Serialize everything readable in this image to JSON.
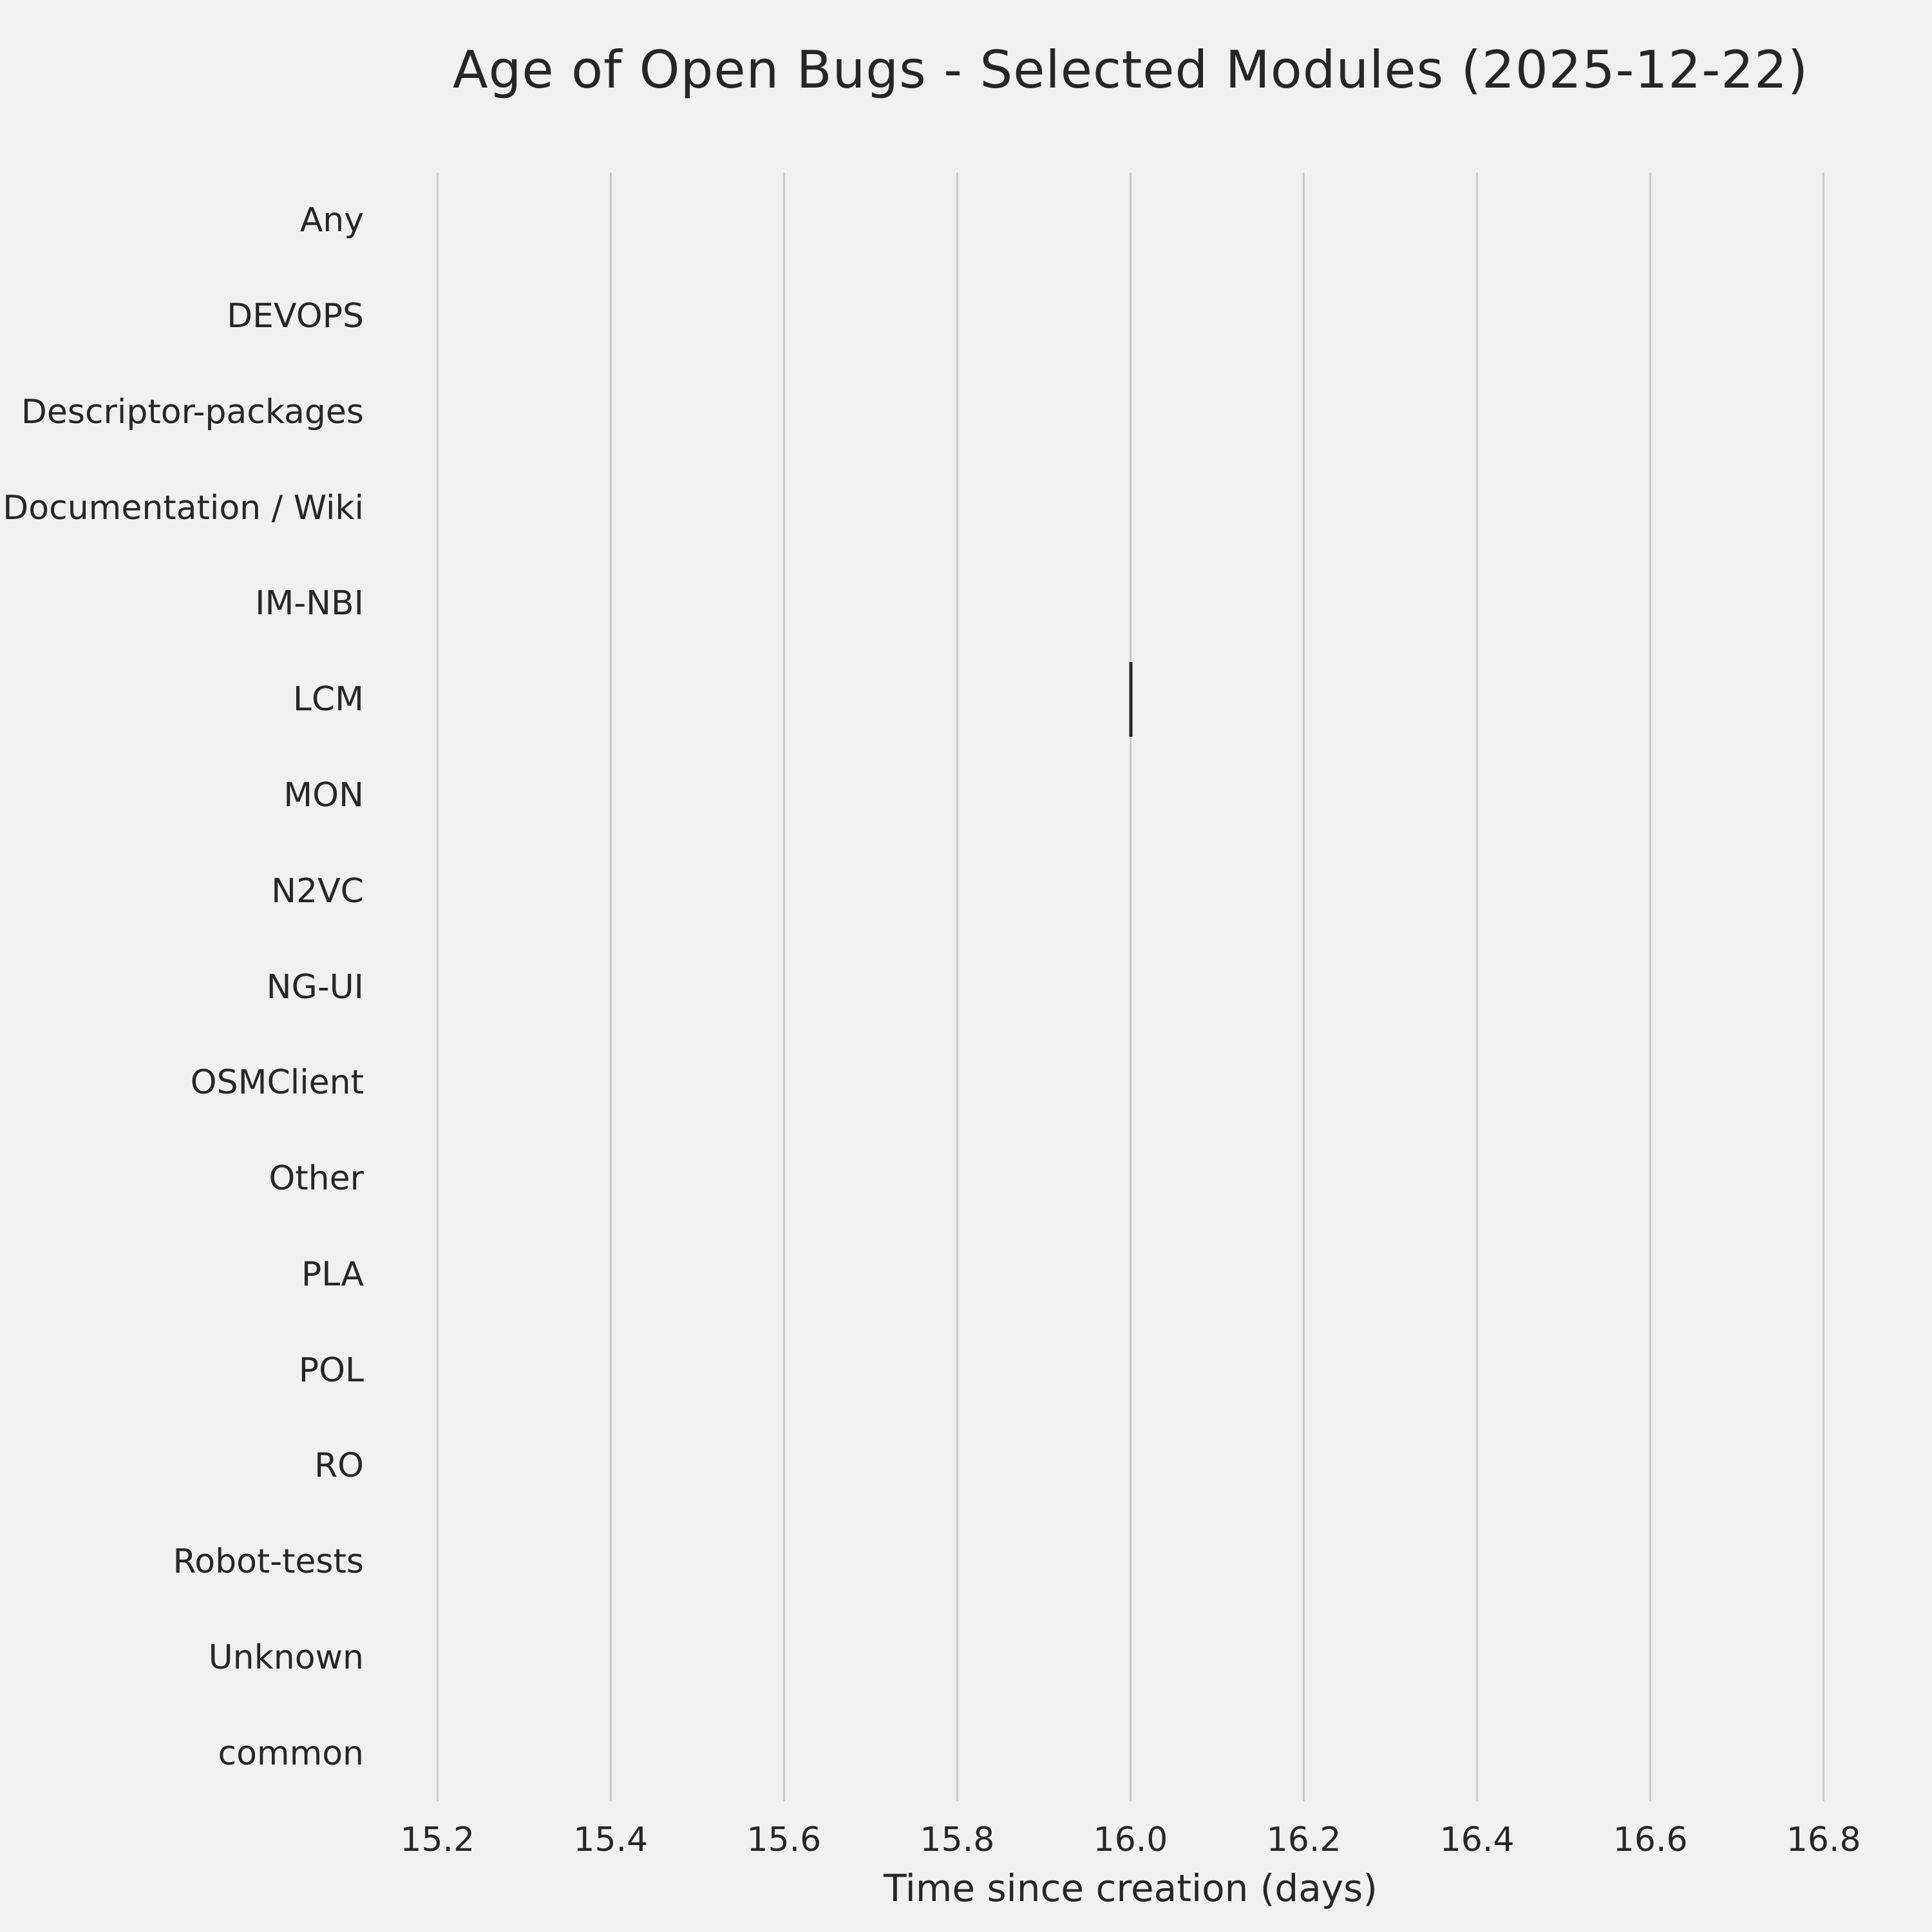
{
  "figure": {
    "title": "Age of Open Bugs - Selected Modules (2025-12-22)",
    "xlabel": "Time since creation (days)"
  },
  "chart_data": {
    "type": "scatter",
    "orientation": "horizontal-categorical",
    "title": "Age of Open Bugs - Selected Modules (2025-12-22)",
    "xlabel": "Time since creation (days)",
    "ylabel": "",
    "categories": [
      "Any",
      "DEVOPS",
      "Descriptor-packages",
      "Documentation / Wiki",
      "IM-NBI",
      "LCM",
      "MON",
      "N2VC",
      "NG-UI",
      "OSMClient",
      "Other",
      "PLA",
      "POL",
      "RO",
      "Robot-tests",
      "Unknown",
      "common"
    ],
    "points": [
      {
        "category": "LCM",
        "x": 16.0,
        "marker": "|"
      }
    ],
    "xlim": [
      15.15,
      16.85
    ],
    "xticks": [
      15.2,
      15.4,
      15.6,
      15.8,
      16.0,
      16.2,
      16.4,
      16.6,
      16.8
    ],
    "xtick_labels": [
      "15.2",
      "15.4",
      "15.6",
      "15.8",
      "16.0",
      "16.2",
      "16.4",
      "16.6",
      "16.8"
    ],
    "grid": "vertical",
    "legend": "none",
    "style": {
      "background_color": "#f0f0f0",
      "grid_color": "#cbcbcb",
      "text_color": "#262626",
      "marker_color": "#262626"
    }
  }
}
